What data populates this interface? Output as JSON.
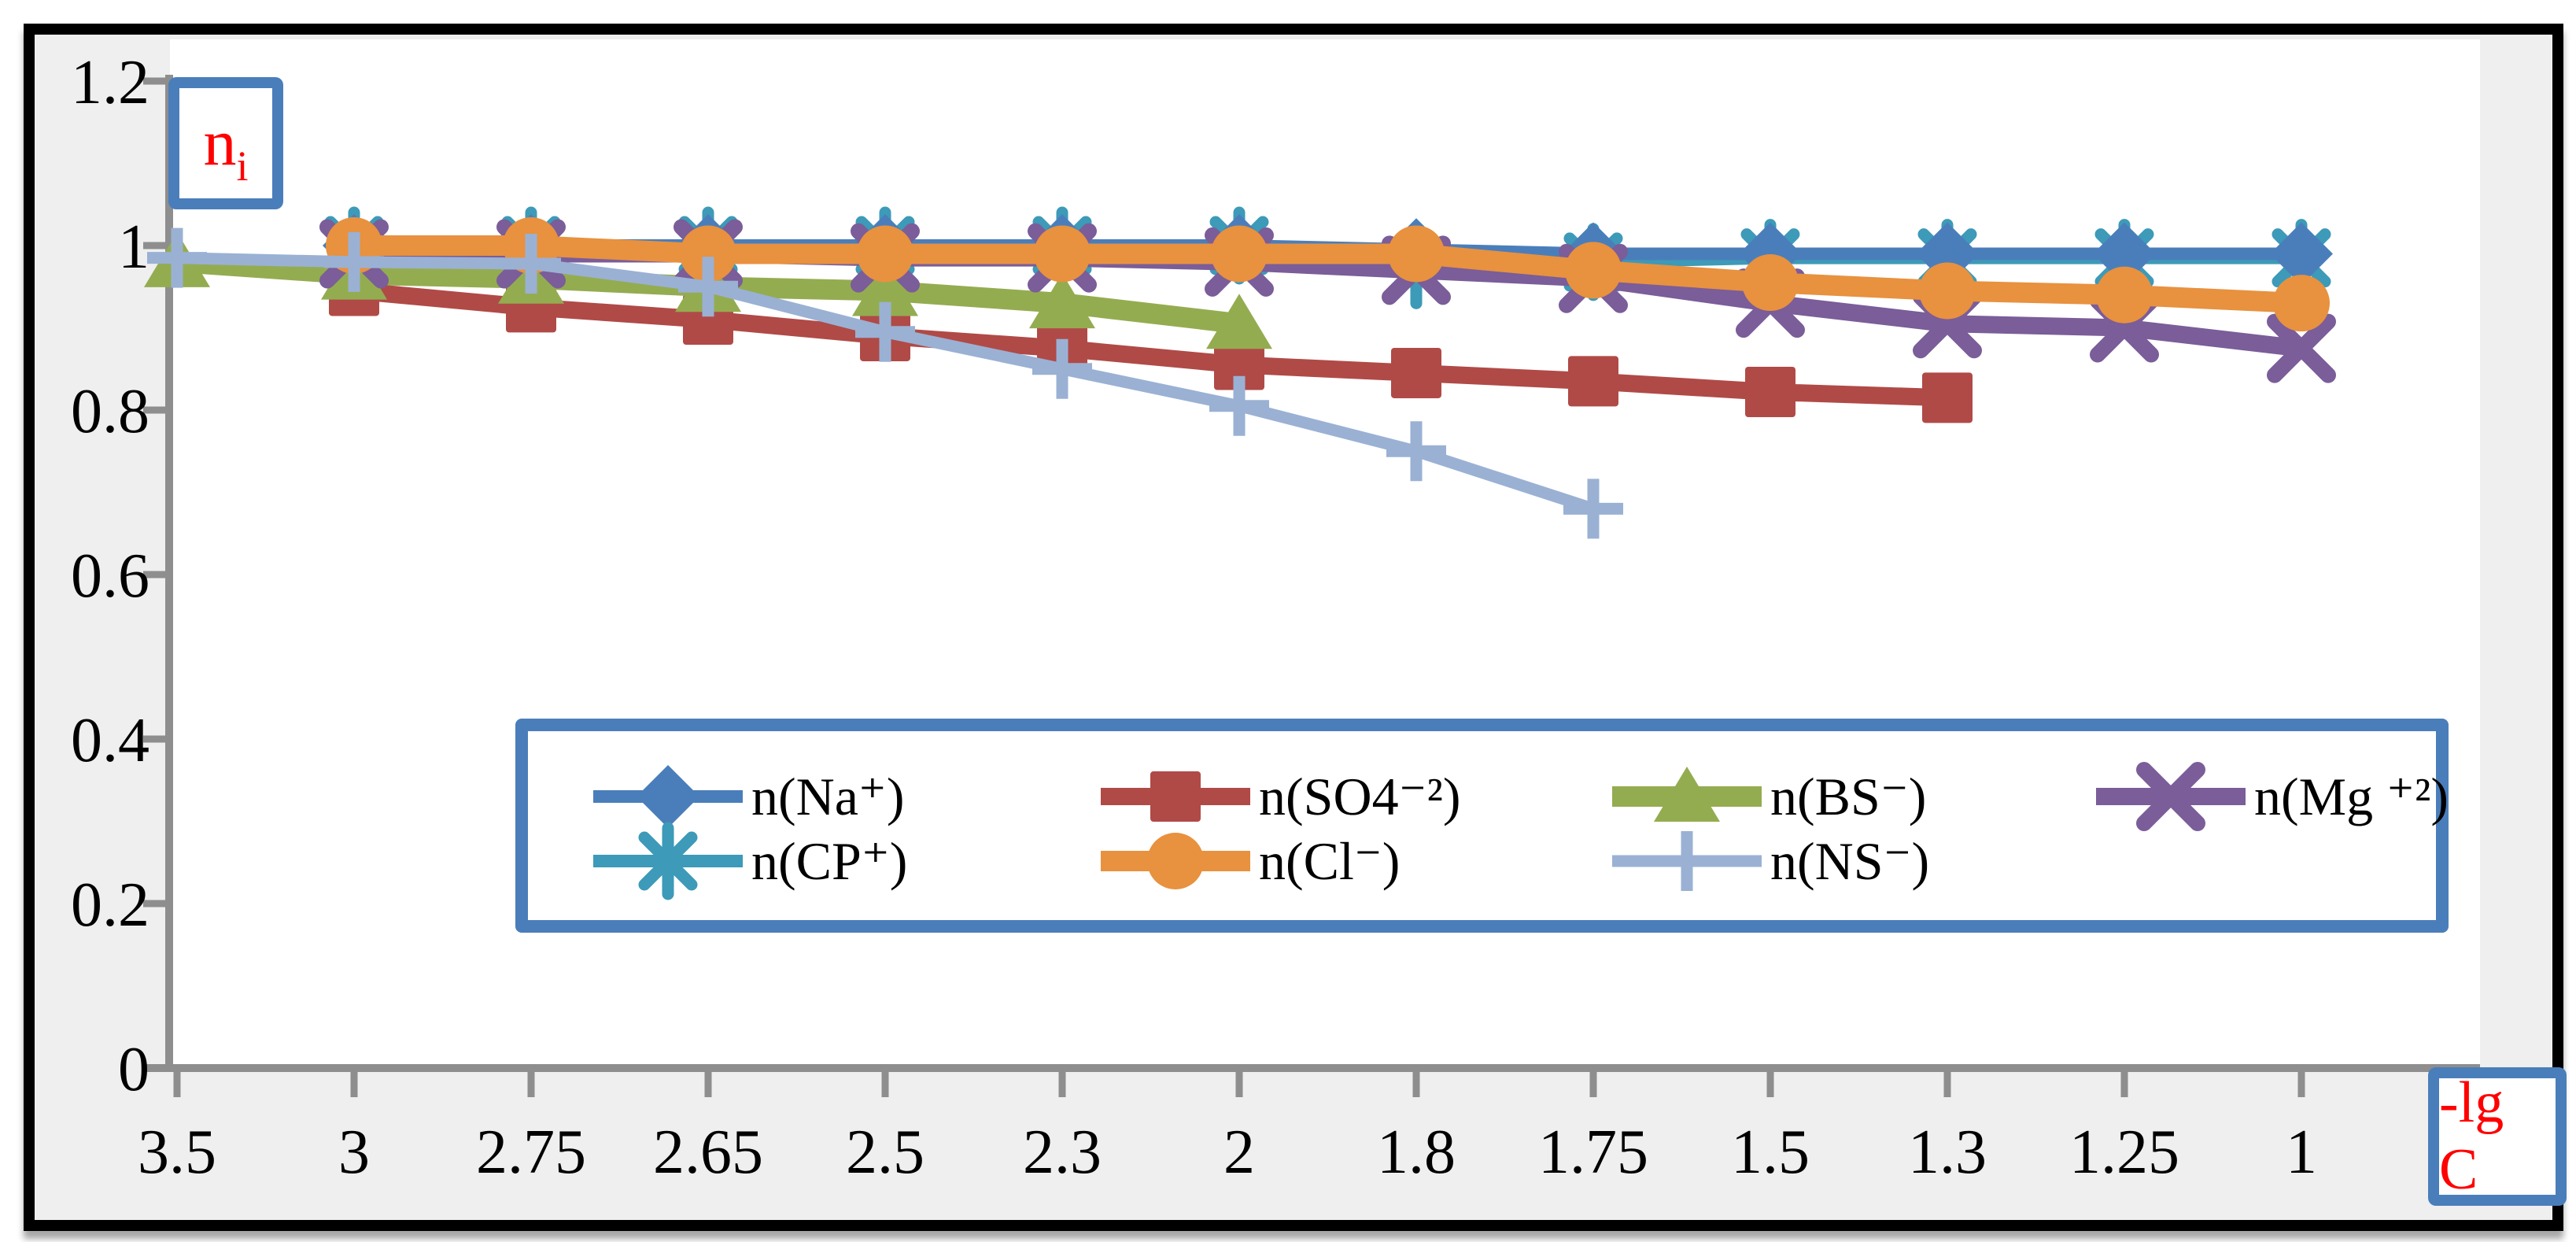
{
  "labels": {
    "y_base": "n",
    "y_sub": "i",
    "x": "-lg C"
  },
  "colors": {
    "figure_bg": "#efeff0",
    "plot_bg": "#ffffff",
    "axis": "#8e8e8e",
    "badge_border": "#4a7ebb",
    "badge_text": "#ff0000",
    "legend_border": "#4a7ebb",
    "frame_border": "#000000"
  },
  "chart_data": {
    "type": "line",
    "title": "",
    "xlabel": "-lg C",
    "ylabel": "ni",
    "x_categories": [
      "3.5",
      "3",
      "2.75",
      "2.65",
      "2.5",
      "2.3",
      "2",
      "1.8",
      "1.75",
      "1.5",
      "1.3",
      "1.25",
      "1"
    ],
    "yticks": [
      "0",
      "0.2",
      "0.4",
      "0.6",
      "0.8",
      "1",
      "1.2"
    ],
    "ylim": [
      0,
      1.2
    ],
    "grid": false,
    "legend_position": "inside-bottom-center",
    "series": [
      {
        "name": "n(Na⁺)",
        "marker": "diamond",
        "color": "#4a7ebb",
        "values": [
          null,
          1.0,
          1.0,
          1.0,
          1.0,
          1.0,
          1.0,
          0.995,
          0.99,
          0.99,
          0.99,
          0.99,
          0.99
        ]
      },
      {
        "name": "n(SO4⁻²)",
        "marker": "square",
        "color": "#b04a47",
        "values": [
          null,
          0.945,
          0.925,
          0.91,
          0.89,
          0.875,
          0.855,
          0.845,
          0.835,
          0.822,
          0.815,
          null,
          null
        ]
      },
      {
        "name": "n(BS⁻)",
        "marker": "triangle",
        "color": "#94ac50",
        "values": [
          0.98,
          0.965,
          0.96,
          0.95,
          0.945,
          0.93,
          0.905,
          null,
          null,
          null,
          null,
          null,
          null
        ]
      },
      {
        "name": "n(Mg ⁺²)",
        "marker": "x",
        "color": "#7a5d99",
        "values": [
          null,
          0.99,
          0.99,
          0.99,
          0.985,
          0.985,
          0.98,
          0.97,
          0.96,
          0.93,
          0.905,
          0.9,
          0.875
        ]
      },
      {
        "name": "n(CP⁺)",
        "marker": "asterisk",
        "color": "#3d9ab8",
        "values": [
          null,
          1.0,
          1.0,
          1.0,
          1.0,
          1.0,
          1.0,
          0.97,
          0.98,
          0.985,
          0.985,
          0.985,
          0.985
        ]
      },
      {
        "name": "n(Cl⁻)",
        "marker": "circle",
        "color": "#e8913f",
        "values": [
          null,
          1.0,
          1.0,
          0.99,
          0.99,
          0.99,
          0.99,
          0.99,
          0.97,
          0.955,
          0.945,
          0.94,
          0.93
        ]
      },
      {
        "name": "n(NS⁻)",
        "marker": "plus",
        "color": "#9ab1d4",
        "values": [
          0.985,
          0.98,
          0.978,
          0.95,
          0.895,
          0.85,
          0.805,
          0.75,
          0.68,
          null,
          null,
          null,
          null
        ]
      }
    ]
  }
}
